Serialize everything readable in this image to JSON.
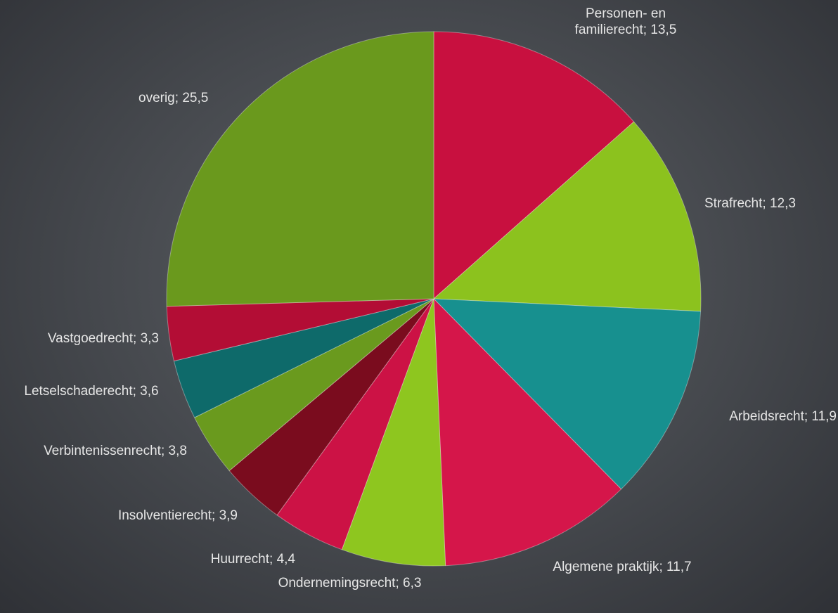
{
  "chart_data": {
    "type": "pie",
    "categories": [
      "Personen- en familierecht",
      "Strafrecht",
      "Arbeidsrecht",
      "Algemene praktijk",
      "Ondernemingsrecht",
      "Huurrecht",
      "Insolventierecht",
      "Verbintenissenrecht",
      "Letselschaderecht",
      "Vastgoedrecht",
      "overig"
    ],
    "values": [
      13.5,
      12.3,
      11.9,
      11.7,
      6.3,
      4.4,
      3.9,
      3.8,
      3.6,
      3.3,
      25.5
    ],
    "value_labels": [
      "13,5",
      "12,3",
      "11,9",
      "11,7",
      "6,3",
      "4,4",
      "3,9",
      "3,8",
      "3,6",
      "3,3",
      "25,5"
    ],
    "colors": [
      "#c8103f",
      "#8cc21e",
      "#17908f",
      "#d5164a",
      "#8ec61f",
      "#cc1245",
      "#7a0c1e",
      "#6a9a1e",
      "#0e6a6a",
      "#b30d35",
      "#6a991d"
    ]
  }
}
